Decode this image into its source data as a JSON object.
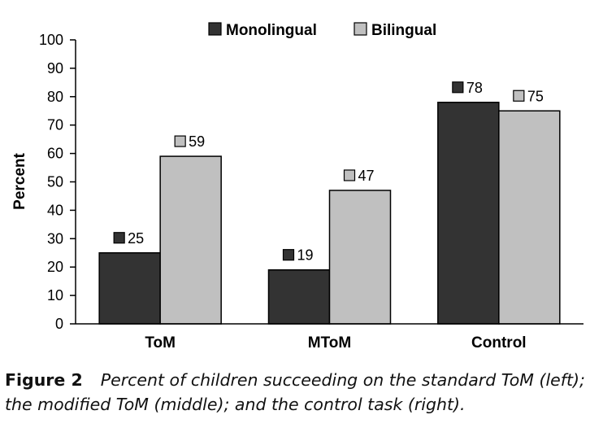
{
  "chart_data": {
    "type": "bar",
    "categories": [
      "ToM",
      "MToM",
      "Control"
    ],
    "series": [
      {
        "name": "Monolingual",
        "values": [
          25,
          19,
          78
        ],
        "color": "#333333"
      },
      {
        "name": "Bilingual",
        "values": [
          59,
          47,
          75
        ],
        "color": "#c0c0c0"
      }
    ],
    "ylabel": "Percent",
    "xlabel": "",
    "ylim": [
      0,
      100
    ],
    "yticks": [
      "0",
      "10",
      "20",
      "30",
      "40",
      "50",
      "60",
      "70",
      "80",
      "90",
      "100"
    ],
    "legend_position": "top",
    "data_labels": true,
    "grid": false
  },
  "caption": {
    "label": "Figure 2",
    "text": "Percent of children succeeding on the standard ToM (left); the modified ToM (middle); and the control task (right)."
  }
}
